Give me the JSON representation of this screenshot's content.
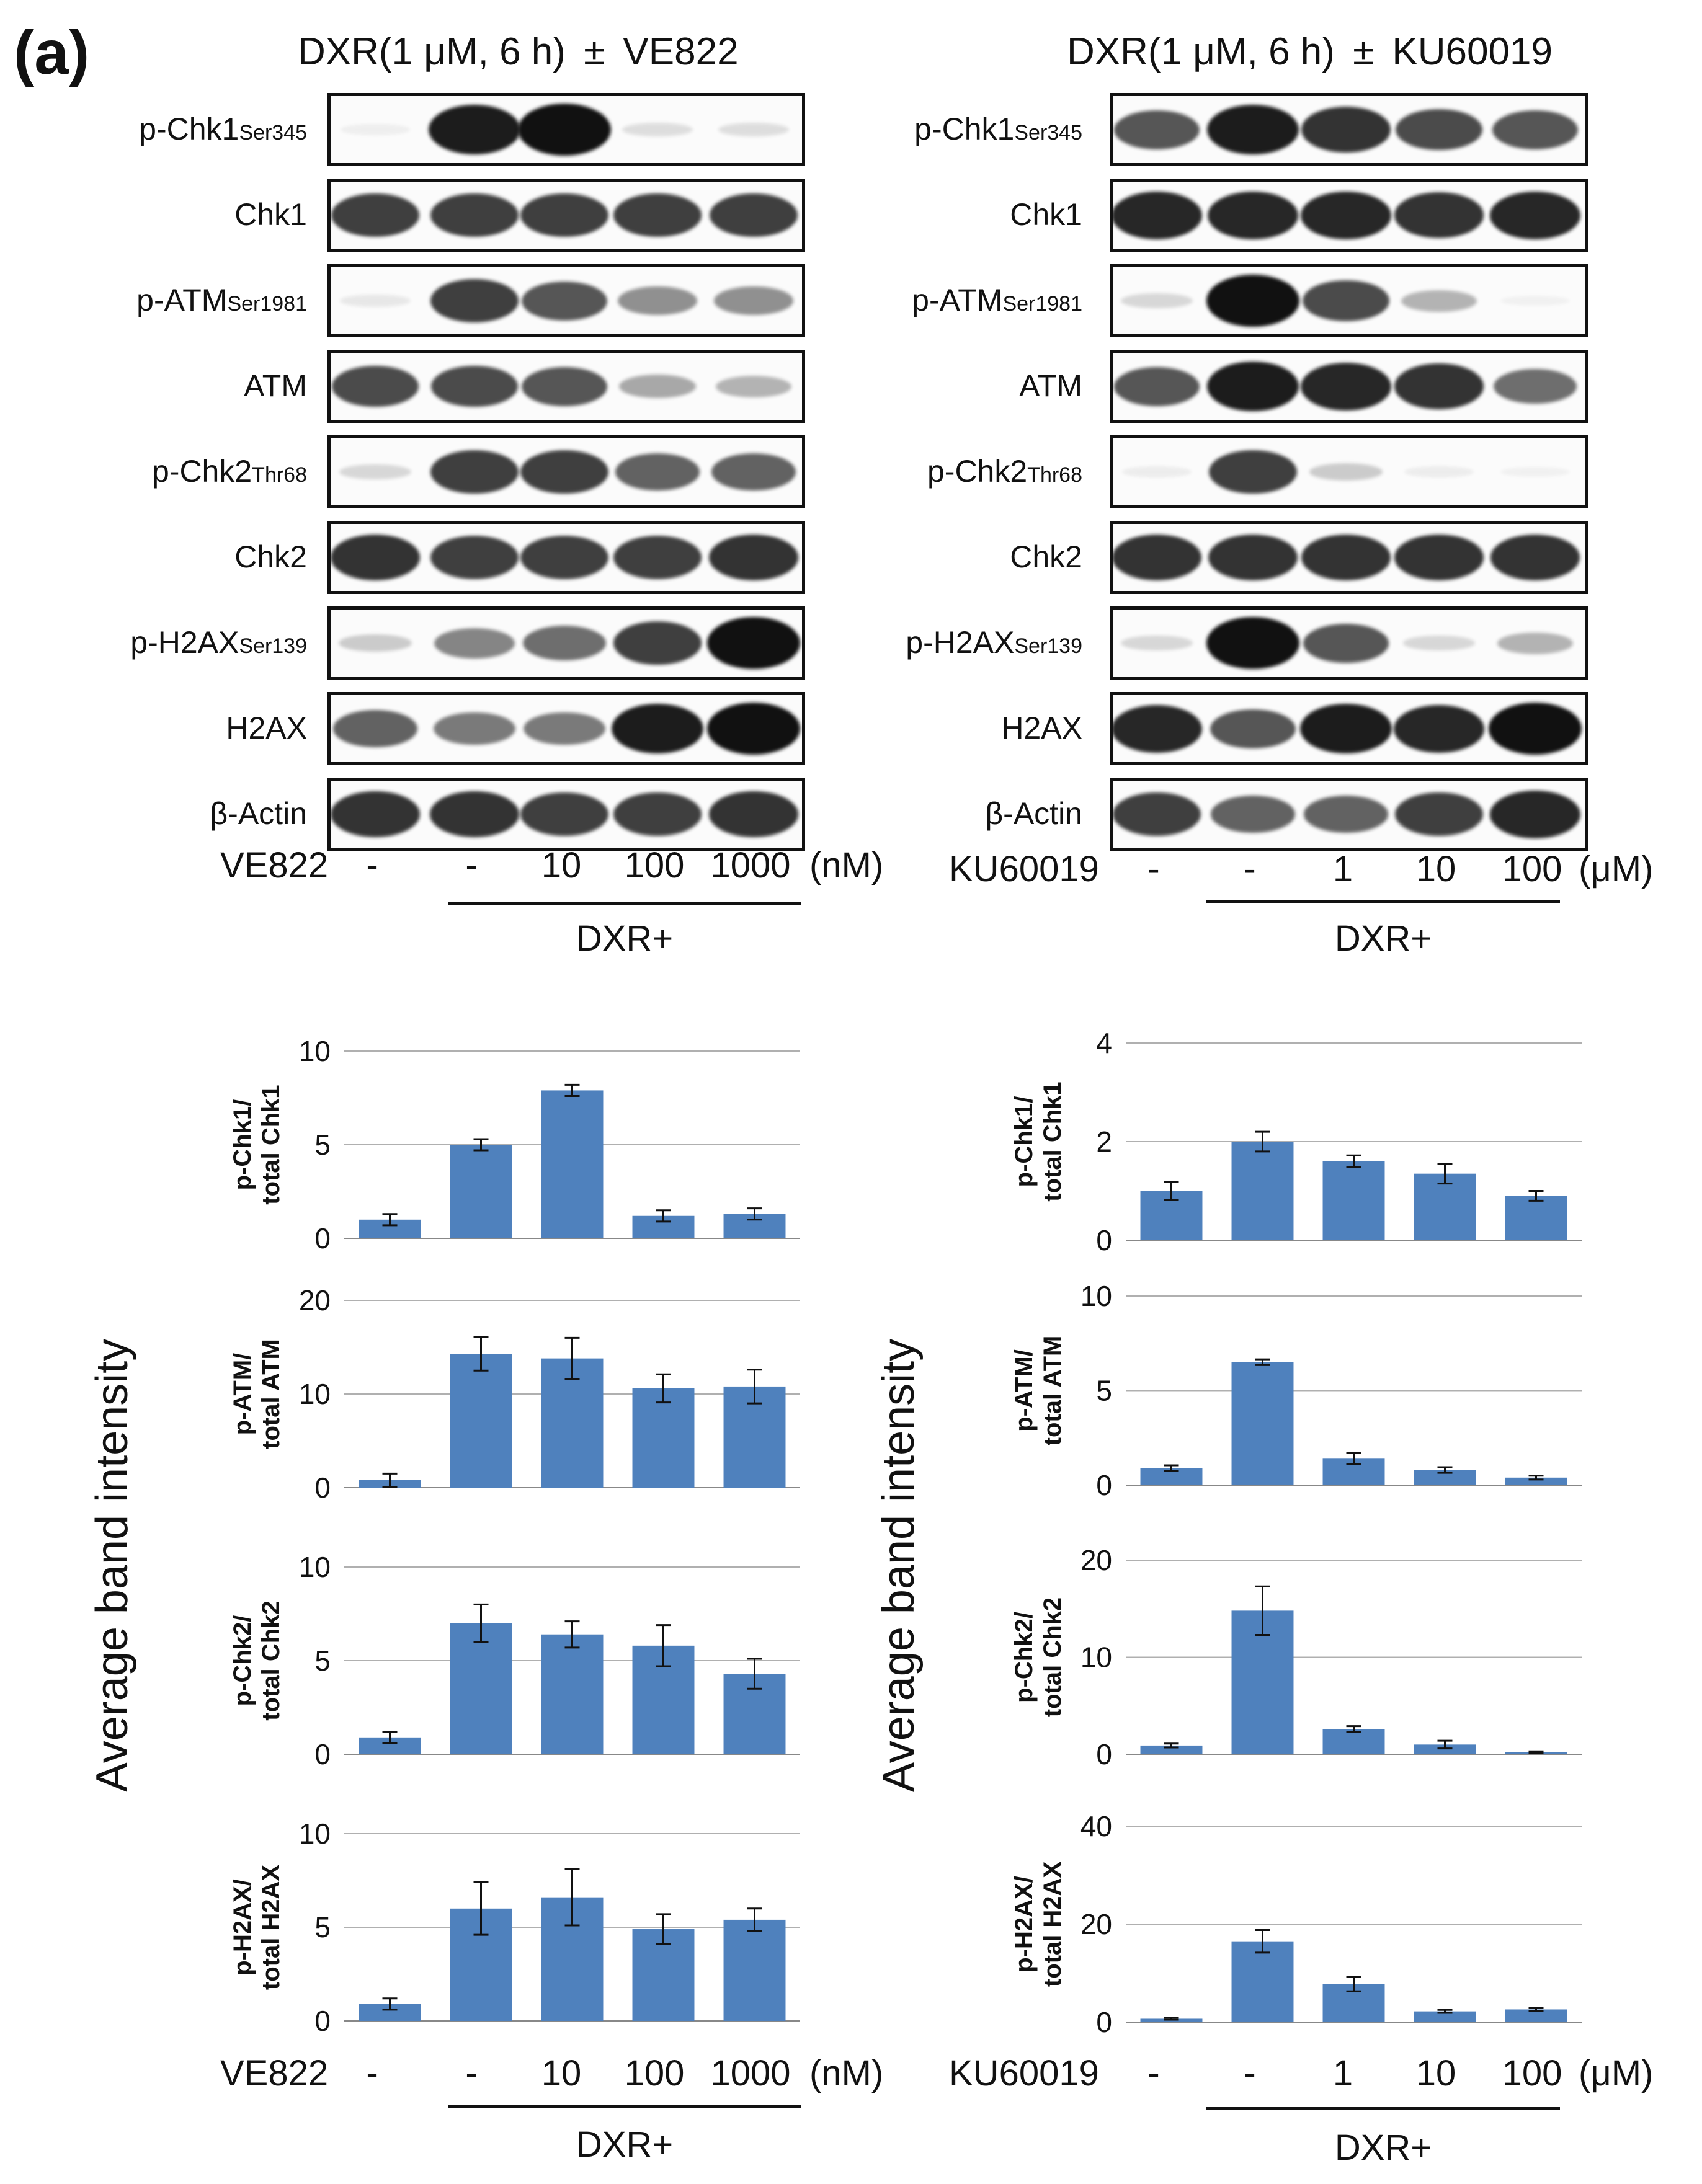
{
  "panel_label": "(a)",
  "left": {
    "title_prefix": "DXR(1 μM, 6 h)",
    "title_pm": "±",
    "title_drug": "VE822",
    "drug_label": "VE822",
    "conditions": [
      "-",
      "-",
      "10",
      "100",
      "1000"
    ],
    "unit": "(nM)",
    "dxr_label": "DXR+",
    "blot_rows": [
      {
        "main": "p-Chk1",
        "sub": "Ser345",
        "bands": [
          0.05,
          0.95,
          1.0,
          0.12,
          0.12
        ]
      },
      {
        "main": "Chk1",
        "sub": "",
        "bands": [
          0.8,
          0.8,
          0.8,
          0.8,
          0.8
        ]
      },
      {
        "main": "p-ATM",
        "sub": "Ser1981",
        "bands": [
          0.08,
          0.8,
          0.7,
          0.45,
          0.45
        ]
      },
      {
        "main": "ATM",
        "sub": "",
        "bands": [
          0.75,
          0.75,
          0.7,
          0.35,
          0.3
        ]
      },
      {
        "main": "p-Chk2",
        "sub": "Thr68",
        "bands": [
          0.15,
          0.8,
          0.8,
          0.65,
          0.65
        ]
      },
      {
        "main": "Chk2",
        "sub": "",
        "bands": [
          0.85,
          0.8,
          0.8,
          0.8,
          0.85
        ]
      },
      {
        "main": "p-H2AX",
        "sub": "Ser139",
        "bands": [
          0.2,
          0.5,
          0.6,
          0.8,
          1.0
        ]
      },
      {
        "main": "H2AX",
        "sub": "",
        "bands": [
          0.65,
          0.55,
          0.55,
          0.95,
          1.0
        ]
      },
      {
        "main": "β-Actin",
        "sub": "",
        "bands": [
          0.85,
          0.85,
          0.8,
          0.8,
          0.85
        ]
      }
    ],
    "y_axis_label": "Average band intensity"
  },
  "right": {
    "title_prefix": "DXR(1 μM, 6 h)",
    "title_pm": "±",
    "title_drug": "KU60019",
    "drug_label": "KU60019",
    "conditions": [
      "-",
      "-",
      "1",
      "10",
      "100"
    ],
    "unit": "(μM)",
    "dxr_label": "DXR+",
    "blot_rows": [
      {
        "main": "p-Chk1",
        "sub": "Ser345",
        "bands": [
          0.7,
          0.95,
          0.85,
          0.75,
          0.7
        ]
      },
      {
        "main": "Chk1",
        "sub": "",
        "bands": [
          0.9,
          0.9,
          0.9,
          0.85,
          0.9
        ]
      },
      {
        "main": "p-ATM",
        "sub": "Ser1981",
        "bands": [
          0.15,
          1.0,
          0.75,
          0.3,
          0.04
        ]
      },
      {
        "main": "ATM",
        "sub": "",
        "bands": [
          0.7,
          0.95,
          0.9,
          0.85,
          0.6
        ]
      },
      {
        "main": "p-Chk2",
        "sub": "Thr68",
        "bands": [
          0.06,
          0.8,
          0.2,
          0.06,
          0.04
        ]
      },
      {
        "main": "Chk2",
        "sub": "",
        "bands": [
          0.85,
          0.85,
          0.85,
          0.85,
          0.85
        ]
      },
      {
        "main": "p-H2AX",
        "sub": "Ser139",
        "bands": [
          0.15,
          1.0,
          0.7,
          0.15,
          0.3
        ]
      },
      {
        "main": "H2AX",
        "sub": "",
        "bands": [
          0.9,
          0.7,
          0.95,
          0.9,
          1.0
        ]
      },
      {
        "main": "β-Actin",
        "sub": "",
        "bands": [
          0.8,
          0.65,
          0.65,
          0.8,
          0.9
        ]
      }
    ],
    "y_axis_label": "Average band intensity"
  },
  "colors": {
    "bar": "#4f81bd",
    "grid": "#b0b0b0",
    "text": "#111111"
  },
  "chart_data": [
    {
      "type": "bar",
      "id": "left-chk1",
      "ylabel_line1": "p-Chk1/",
      "ylabel_line2": "total Chk1",
      "categories": [
        "-",
        "-",
        "10",
        "100",
        "1000"
      ],
      "values": [
        1.0,
        5.0,
        7.9,
        1.2,
        1.3
      ],
      "errors": [
        0.3,
        0.3,
        0.3,
        0.3,
        0.3
      ],
      "ylim": [
        0,
        10
      ],
      "yticks": [
        0,
        5,
        10
      ]
    },
    {
      "type": "bar",
      "id": "left-atm",
      "ylabel_line1": "p-ATM/",
      "ylabel_line2": "total ATM",
      "categories": [
        "-",
        "-",
        "10",
        "100",
        "1000"
      ],
      "values": [
        0.8,
        14.3,
        13.8,
        10.6,
        10.8
      ],
      "errors": [
        0.7,
        1.8,
        2.2,
        1.5,
        1.8
      ],
      "ylim": [
        0,
        20
      ],
      "yticks": [
        0,
        10,
        20
      ]
    },
    {
      "type": "bar",
      "id": "left-chk2",
      "ylabel_line1": "p-Chk2/",
      "ylabel_line2": "total Chk2",
      "categories": [
        "-",
        "-",
        "10",
        "100",
        "1000"
      ],
      "values": [
        0.9,
        7.0,
        6.4,
        5.8,
        4.3
      ],
      "errors": [
        0.3,
        1.0,
        0.7,
        1.1,
        0.8
      ],
      "ylim": [
        0,
        10
      ],
      "yticks": [
        0,
        5,
        10
      ]
    },
    {
      "type": "bar",
      "id": "left-h2ax",
      "ylabel_line1": "p-H2AX/",
      "ylabel_line2": "total H2AX",
      "categories": [
        "-",
        "-",
        "10",
        "100",
        "1000"
      ],
      "values": [
        0.9,
        6.0,
        6.6,
        4.9,
        5.4
      ],
      "errors": [
        0.3,
        1.4,
        1.5,
        0.8,
        0.6
      ],
      "ylim": [
        0,
        10
      ],
      "yticks": [
        0,
        5,
        10
      ]
    },
    {
      "type": "bar",
      "id": "right-chk1",
      "ylabel_line1": "p-Chk1/",
      "ylabel_line2": "total Chk1",
      "categories": [
        "-",
        "-",
        "1",
        "10",
        "100"
      ],
      "values": [
        1.0,
        2.0,
        1.6,
        1.35,
        0.9
      ],
      "errors": [
        0.18,
        0.2,
        0.12,
        0.2,
        0.1
      ],
      "ylim": [
        0,
        4
      ],
      "yticks": [
        0,
        2,
        4
      ]
    },
    {
      "type": "bar",
      "id": "right-atm",
      "ylabel_line1": "p-ATM/",
      "ylabel_line2": "total ATM",
      "categories": [
        "-",
        "-",
        "1",
        "10",
        "100"
      ],
      "values": [
        0.9,
        6.5,
        1.4,
        0.8,
        0.4
      ],
      "errors": [
        0.15,
        0.15,
        0.3,
        0.15,
        0.1
      ],
      "ylim": [
        0,
        10
      ],
      "yticks": [
        0,
        5,
        10
      ]
    },
    {
      "type": "bar",
      "id": "right-chk2",
      "ylabel_line1": "p-Chk2/",
      "ylabel_line2": "total Chk2",
      "categories": [
        "-",
        "-",
        "1",
        "10",
        "100"
      ],
      "values": [
        0.9,
        14.8,
        2.6,
        1.0,
        0.2
      ],
      "errors": [
        0.2,
        2.5,
        0.3,
        0.4,
        0.1
      ],
      "ylim": [
        0,
        20
      ],
      "yticks": [
        0,
        10,
        20
      ]
    },
    {
      "type": "bar",
      "id": "right-h2ax",
      "ylabel_line1": "p-H2AX/",
      "ylabel_line2": "total H2AX",
      "categories": [
        "-",
        "-",
        "1",
        "10",
        "100"
      ],
      "values": [
        0.7,
        16.5,
        7.8,
        2.2,
        2.6
      ],
      "errors": [
        0.2,
        2.3,
        1.5,
        0.3,
        0.3
      ],
      "ylim": [
        0,
        40
      ],
      "yticks": [
        0,
        20,
        40
      ]
    }
  ]
}
